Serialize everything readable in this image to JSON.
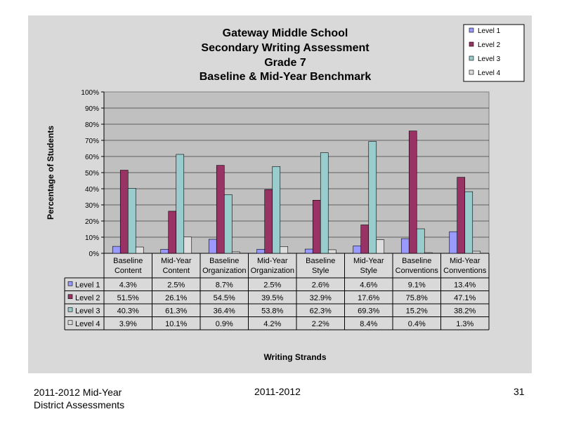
{
  "chart_data": {
    "type": "bar",
    "title": [
      "Gateway Middle School",
      "Secondary Writing Assessment",
      "Grade 7",
      "Baseline & Mid-Year Benchmark"
    ],
    "xlabel": "Writing Strands",
    "ylabel": "Percentage of Students",
    "ylim": [
      0,
      100
    ],
    "yticks": [
      "0%",
      "10%",
      "20%",
      "30%",
      "40%",
      "50%",
      "60%",
      "70%",
      "80%",
      "90%",
      "100%"
    ],
    "grid": true,
    "legend_position": "top-right",
    "categories": [
      [
        "Baseline",
        "Content"
      ],
      [
        "Mid-Year",
        "Content"
      ],
      [
        "Baseline",
        "Organization"
      ],
      [
        "Mid-Year",
        "Organization"
      ],
      [
        "Baseline",
        "Style"
      ],
      [
        "Mid-Year",
        "Style"
      ],
      [
        "Baseline",
        "Conventions"
      ],
      [
        "Mid-Year",
        "Conventions"
      ]
    ],
    "series": [
      {
        "name": "Level 1",
        "color": "#9999ff",
        "values": [
          4.3,
          2.5,
          8.7,
          2.5,
          2.6,
          4.6,
          9.1,
          13.4
        ],
        "labels": [
          "4.3%",
          "2.5%",
          "8.7%",
          "2.5%",
          "2.6%",
          "4.6%",
          "9.1%",
          "13.4%"
        ]
      },
      {
        "name": "Level 2",
        "color": "#993366",
        "values": [
          51.5,
          26.1,
          54.5,
          39.5,
          32.9,
          17.6,
          75.8,
          47.1
        ],
        "labels": [
          "51.5%",
          "26.1%",
          "54.5%",
          "39.5%",
          "32.9%",
          "17.6%",
          "75.8%",
          "47.1%"
        ]
      },
      {
        "name": "Level 3",
        "color": "#99cccc",
        "values": [
          40.3,
          61.3,
          36.4,
          53.8,
          62.3,
          69.3,
          15.2,
          38.2
        ],
        "labels": [
          "40.3%",
          "61.3%",
          "36.4%",
          "53.8%",
          "62.3%",
          "69.3%",
          "15.2%",
          "38.2%"
        ]
      },
      {
        "name": "Level 4",
        "color": "#dddddd",
        "values": [
          3.9,
          10.1,
          0.9,
          4.2,
          2.2,
          8.4,
          0.4,
          1.3
        ],
        "labels": [
          "3.9%",
          "10.1%",
          "0.9%",
          "4.2%",
          "2.2%",
          "8.4%",
          "0.4%",
          "1.3%"
        ]
      }
    ]
  },
  "footer": {
    "left_line1": "2011-2012  Mid-Year",
    "left_line2": "District Assessments",
    "center": "2011-2012",
    "page_number": "31"
  }
}
